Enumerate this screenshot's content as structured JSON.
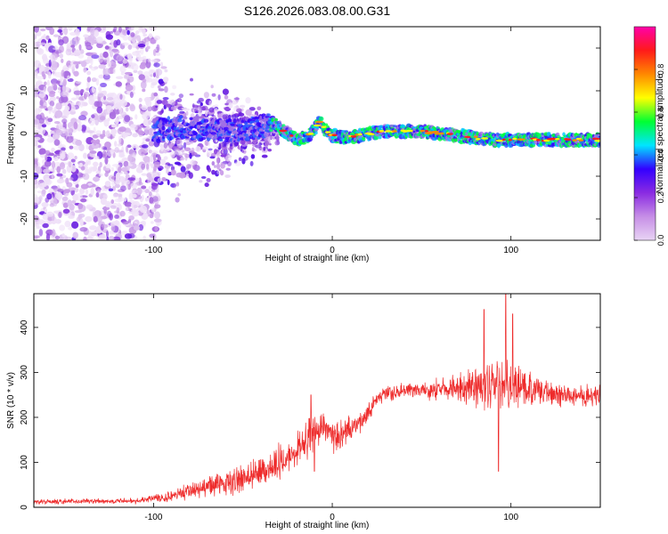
{
  "title": "S126.2026.083.08.00.G31",
  "chart_data": [
    {
      "type": "heatmap",
      "name": "spectrogram",
      "xlabel": "Height of straight line (km)",
      "ylabel": "Frequency (Hz)",
      "xlim": [
        -167,
        150
      ],
      "ylim": [
        -25,
        25
      ],
      "xticks": [
        -100,
        0,
        100
      ],
      "yticks": [
        -20,
        -10,
        0,
        10,
        20
      ],
      "ridge": {
        "x": [
          -100,
          -85,
          -70,
          -55,
          -40,
          -33,
          -25,
          -20,
          -15,
          -10,
          -7,
          -3,
          0,
          10,
          20,
          30,
          40,
          50,
          60,
          70,
          80,
          90,
          100,
          110,
          120,
          130,
          140,
          150
        ],
        "y": [
          0.5,
          1.5,
          1,
          0.5,
          1.5,
          2.5,
          0,
          -1.5,
          -1,
          1,
          2.5,
          0.5,
          -0.5,
          -1,
          0,
          0.5,
          0.5,
          0.5,
          0,
          -0.5,
          -1,
          -1.5,
          -1.5,
          -1.5,
          -1.5,
          -1.5,
          -1.5,
          -1.5
        ]
      },
      "colorbar": {
        "label": "Normalized spectral amplitude",
        "range": [
          0,
          1
        ],
        "ticks": [
          "0.0",
          "0.2",
          "0.4",
          "0.6",
          "0.8"
        ],
        "tick_values": [
          0,
          0.2,
          0.4,
          0.6,
          0.8
        ],
        "colors": [
          "#e8d4f4",
          "#c68ee6",
          "#8a2be2",
          "#3300ff",
          "#00e5ff",
          "#00ff33",
          "#ffff00",
          "#ff8800",
          "#ff1a1a",
          "#ff00aa"
        ]
      }
    },
    {
      "type": "line",
      "name": "snr",
      "xlabel": "Height of straight line (km)",
      "ylabel": "SNR (10 * v/v)",
      "xlim": [
        -167,
        150
      ],
      "ylim": [
        0,
        475
      ],
      "xticks": [
        -100,
        0,
        100
      ],
      "yticks": [
        0,
        100,
        200,
        300,
        400
      ],
      "color": "#ee2b2b",
      "envelope": {
        "x": [
          -167,
          -110,
          -100,
          -90,
          -80,
          -70,
          -60,
          -50,
          -40,
          -30,
          -20,
          -15,
          -10,
          -5,
          0,
          5,
          10,
          15,
          20,
          25,
          30,
          40,
          50,
          60,
          70,
          80,
          90,
          100,
          110,
          120,
          130,
          140,
          150
        ],
        "mean": [
          12,
          15,
          20,
          25,
          35,
          45,
          55,
          65,
          80,
          100,
          130,
          150,
          165,
          175,
          155,
          160,
          175,
          185,
          210,
          240,
          255,
          258,
          260,
          262,
          265,
          270,
          275,
          270,
          260,
          255,
          250,
          250,
          250
        ],
        "spread": [
          5,
          6,
          8,
          12,
          18,
          22,
          25,
          28,
          32,
          35,
          38,
          40,
          40,
          35,
          30,
          30,
          28,
          25,
          20,
          18,
          16,
          16,
          18,
          22,
          30,
          45,
          55,
          50,
          38,
          30,
          25,
          22,
          22
        ]
      },
      "spikes": [
        {
          "x": -12,
          "y": 250
        },
        {
          "x": -10,
          "y": 80
        },
        {
          "x": 85,
          "y": 440
        },
        {
          "x": 97,
          "y": 475
        },
        {
          "x": 93,
          "y": 80
        },
        {
          "x": 101,
          "y": 430
        }
      ]
    }
  ]
}
